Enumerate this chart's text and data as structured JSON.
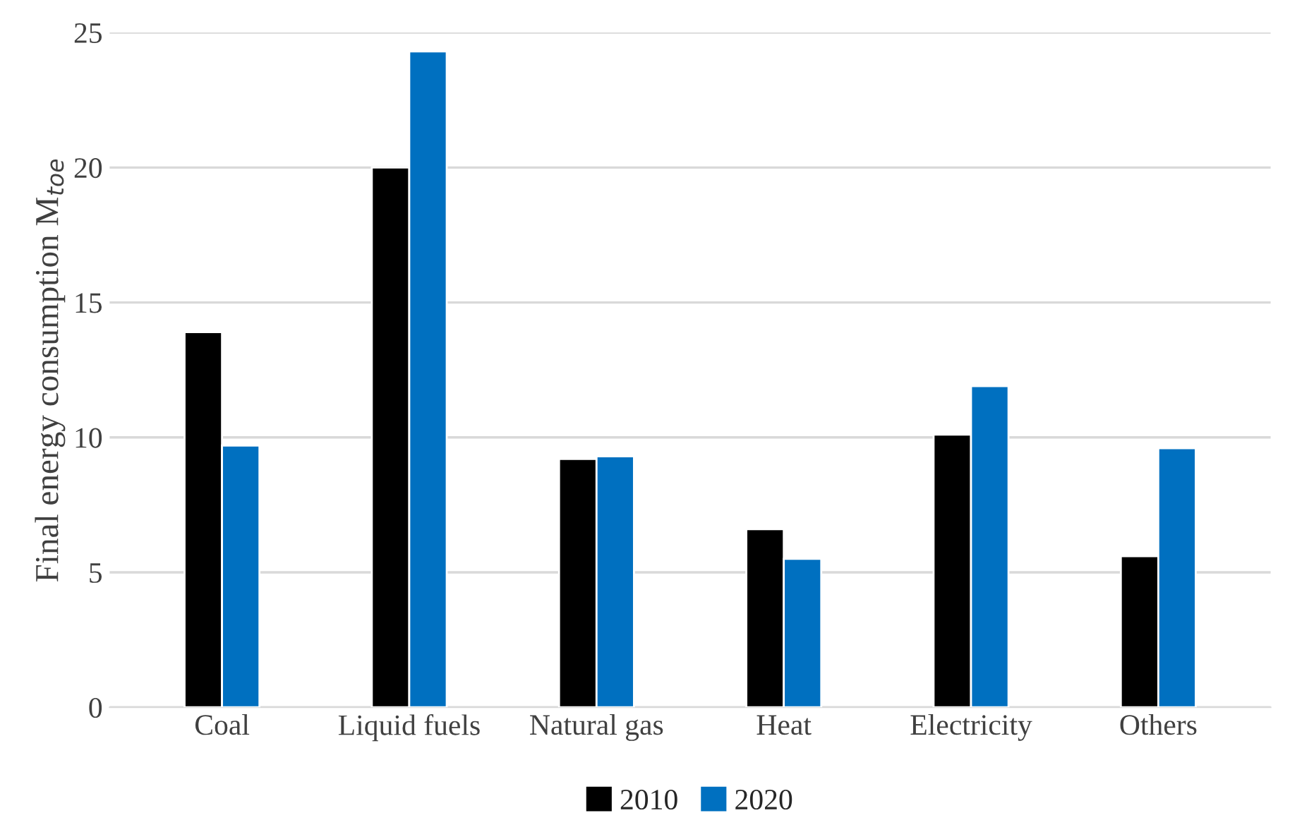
{
  "chart_data": {
    "type": "bar",
    "ylabel": "Final energy consumption M$_{toe}$",
    "categories": [
      "Coal",
      "Liquid fuels",
      "Natural gas",
      "Heat",
      "Electricity",
      "Others"
    ],
    "series": [
      {
        "name": "2010",
        "color": "#000000",
        "values": [
          13.9,
          20.0,
          9.2,
          6.6,
          10.1,
          5.6
        ]
      },
      {
        "name": "2020",
        "color": "#0070c0",
        "values": [
          9.7,
          24.3,
          9.3,
          5.5,
          11.9,
          9.6
        ]
      }
    ],
    "ylim": [
      0,
      25
    ],
    "yticks": [
      0,
      5,
      10,
      15,
      20,
      25
    ],
    "grid": "y",
    "legend": "bottom"
  }
}
